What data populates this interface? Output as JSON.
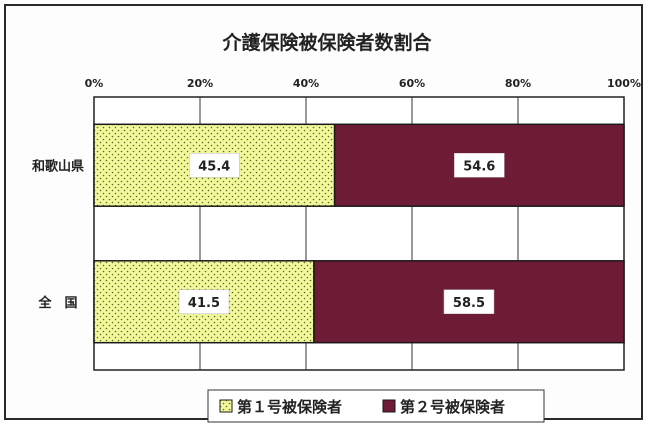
{
  "chart_data": {
    "type": "bar",
    "orientation": "horizontal",
    "stacked": "percent",
    "title": "介護保険被保険者数割合",
    "categories": [
      "和歌山県",
      "全　国"
    ],
    "series": [
      {
        "name": "第１号被保険者",
        "values": [
          45.4,
          41.5
        ],
        "color": "#f2f79a",
        "pattern": "dots"
      },
      {
        "name": "第２号被保険者",
        "values": [
          54.6,
          58.5
        ],
        "color": "#6e1b36"
      }
    ],
    "xticks": [
      "0%",
      "20%",
      "40%",
      "60%",
      "80%",
      "100%"
    ],
    "xlim": [
      0,
      100
    ],
    "grid": true,
    "legend_position": "bottom"
  }
}
